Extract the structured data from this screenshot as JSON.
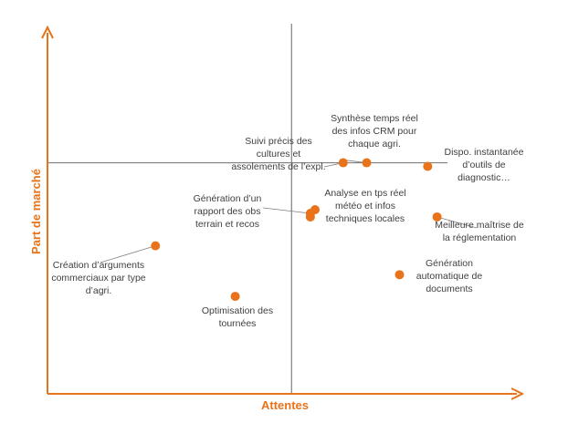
{
  "chart_data": {
    "type": "scatter",
    "title": "",
    "xlabel": "Attentes",
    "ylabel": "Part de marché",
    "xlim": [
      0,
      100
    ],
    "ylim": [
      0,
      100
    ],
    "grid": false,
    "quadrant_lines": {
      "x": 52,
      "y": 64
    },
    "colors": {
      "axis": "#E8731A",
      "point": "#E8731A",
      "divider": "#7F7F7F",
      "text": "#404040"
    },
    "points": [
      {
        "label": [
          "Création d’arguments",
          "commerciaux par type",
          "d’agri."
        ],
        "x": 23,
        "y": 41
      },
      {
        "label": [
          "Optimisation des",
          "tournées"
        ],
        "x": 40,
        "y": 27
      },
      {
        "label": [
          "Génération d’un",
          "rapport des obs",
          "terrain et recos"
        ],
        "x": 56,
        "y": 50
      },
      {
        "label": [],
        "x": 57,
        "y": 51
      },
      {
        "label": [
          "Suivi précis des",
          "cultures et",
          "assolements de l’expl."
        ],
        "x": 63,
        "y": 64
      },
      {
        "label": [
          "Synthèse temps réel",
          "des infos CRM pour",
          "chaque agri."
        ],
        "x": 68,
        "y": 64
      },
      {
        "label": [
          "Dispo. instantanée",
          "d’outils de",
          "diagnostic…"
        ],
        "x": 81,
        "y": 63
      },
      {
        "label": [
          "Analyse en tps réel",
          "météo et infos",
          "techniques locales"
        ],
        "x": 56,
        "y": 49
      },
      {
        "label": [
          "Meilleure maîtrise de",
          "la réglementation"
        ],
        "x": 83,
        "y": 49
      },
      {
        "label": [
          "Génération",
          "automatique de",
          "documents"
        ],
        "x": 75,
        "y": 33
      }
    ]
  }
}
